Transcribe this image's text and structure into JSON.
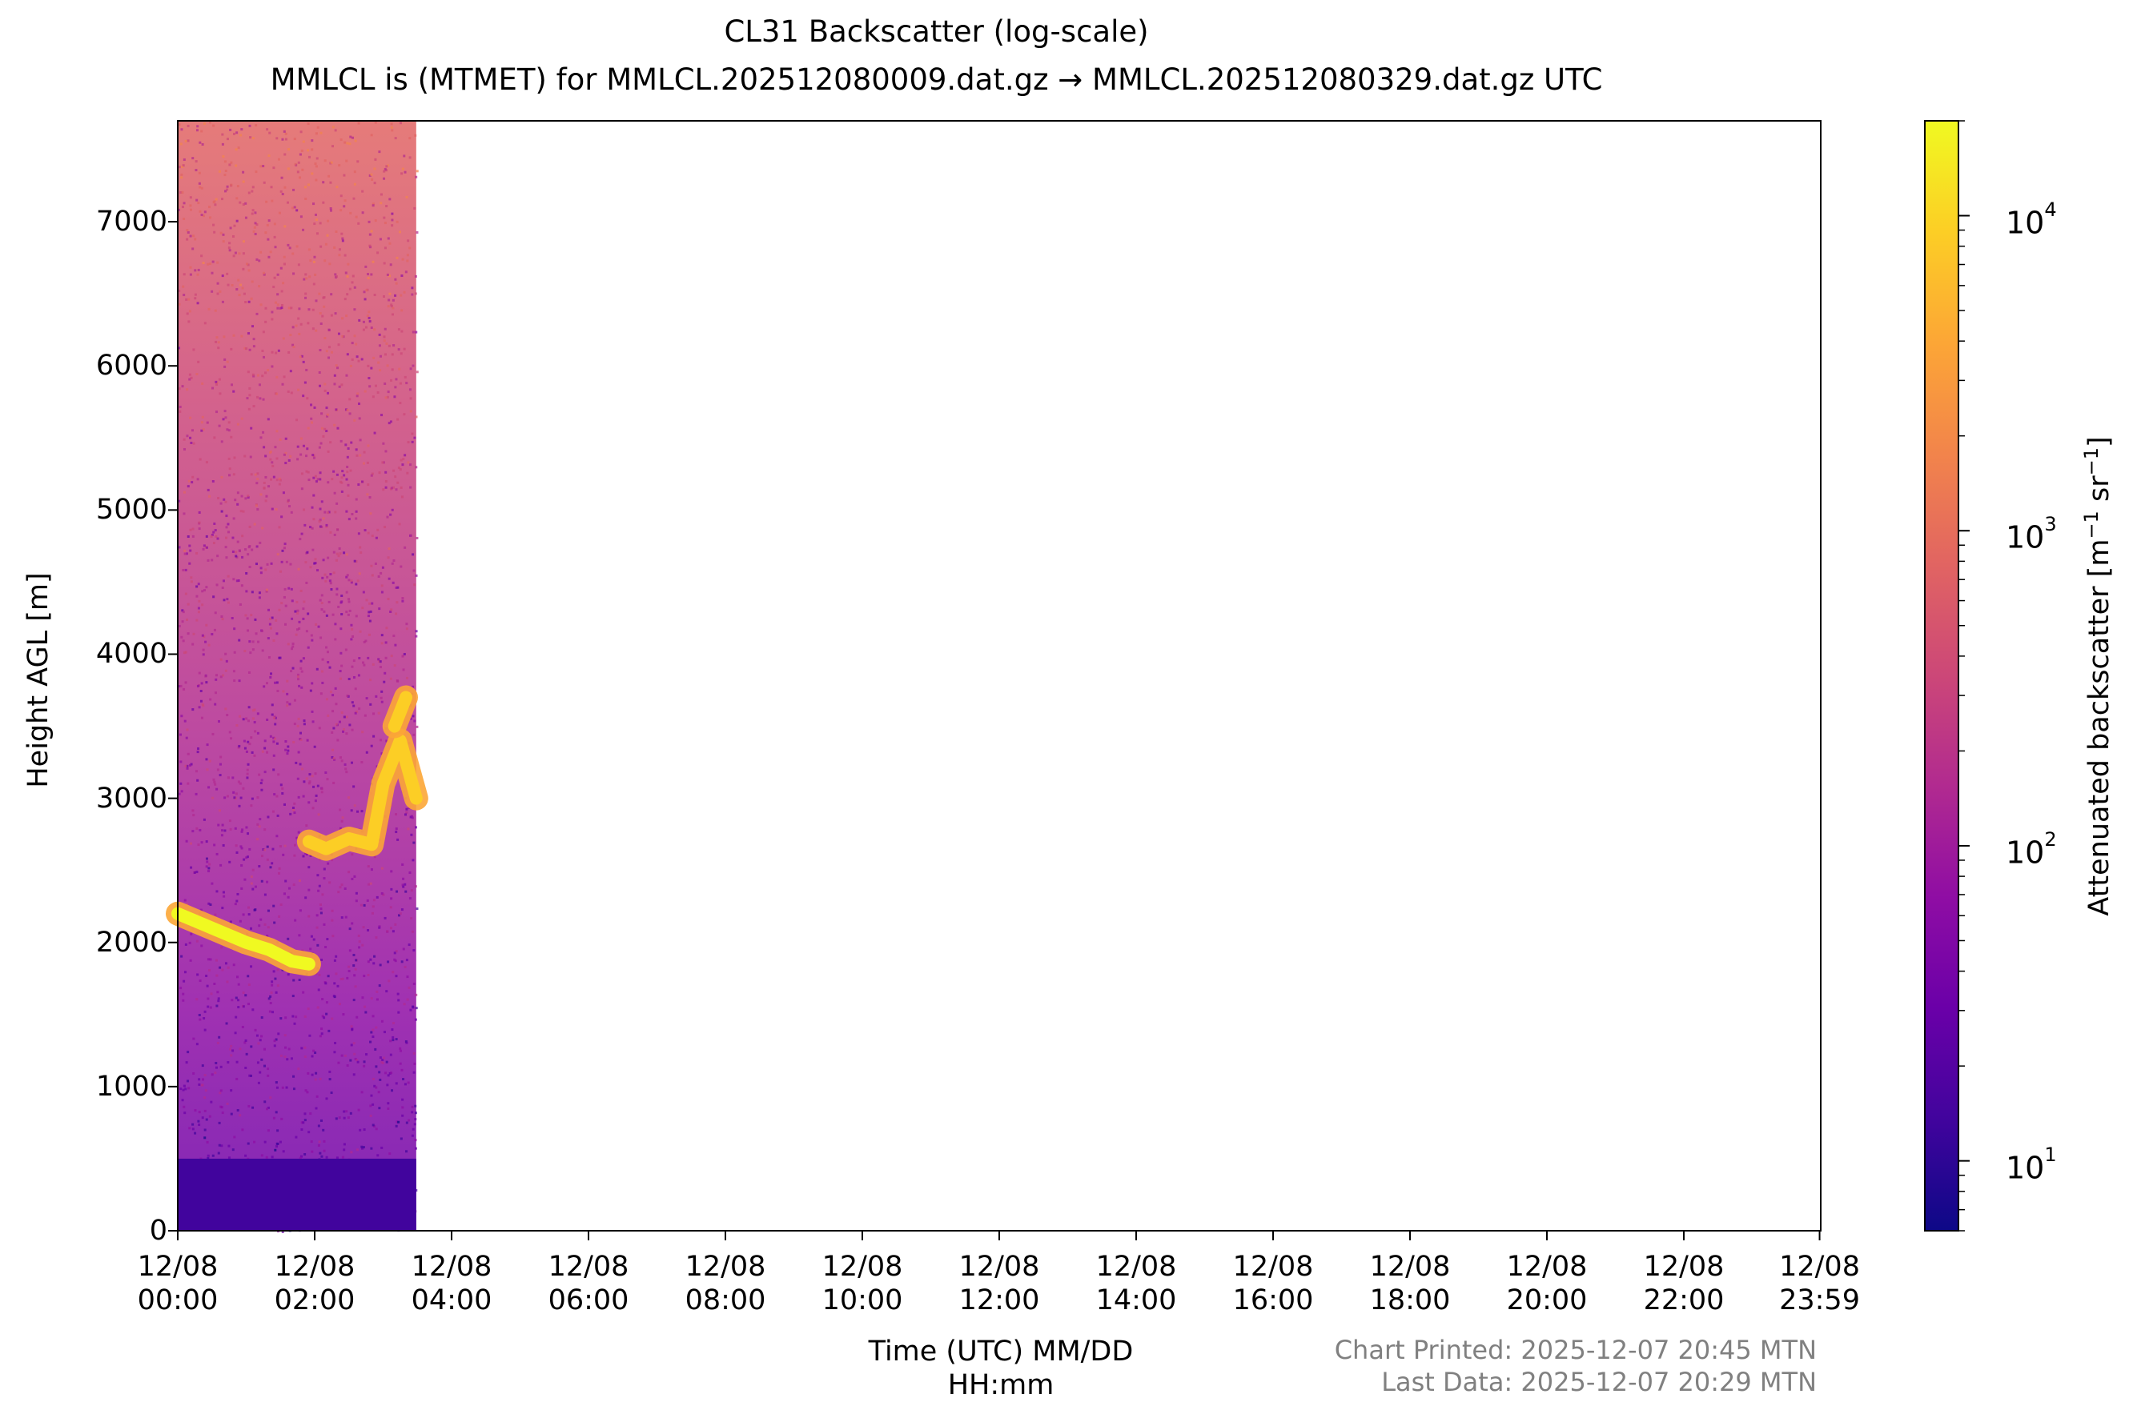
{
  "chart_data": {
    "type": "heatmap",
    "title": "CL31 Backscatter (log-scale)",
    "subtitle": "MMLCL is (MTMET) for MMLCL.202512080009.dat.gz → MMLCL.202512080329.dat.gz UTC",
    "xlabel": "Time (UTC) MM/DD\nHH:mm",
    "xlabel_lines": [
      "Time (UTC) MM/DD",
      "HH:mm"
    ],
    "ylabel": "Height AGL [m]",
    "x_range": [
      "12/08 00:00",
      "12/08 23:59"
    ],
    "x_ticks": [
      [
        "12/08",
        "00:00"
      ],
      [
        "12/08",
        "02:00"
      ],
      [
        "12/08",
        "04:00"
      ],
      [
        "12/08",
        "06:00"
      ],
      [
        "12/08",
        "08:00"
      ],
      [
        "12/08",
        "10:00"
      ],
      [
        "12/08",
        "12:00"
      ],
      [
        "12/08",
        "14:00"
      ],
      [
        "12/08",
        "16:00"
      ],
      [
        "12/08",
        "18:00"
      ],
      [
        "12/08",
        "20:00"
      ],
      [
        "12/08",
        "22:00"
      ],
      [
        "12/08",
        "23:59"
      ]
    ],
    "x_ticks_hours": [
      0,
      2,
      4,
      6,
      8,
      10,
      12,
      14,
      16,
      18,
      20,
      22,
      23.983
    ],
    "y_ticks": [
      0,
      1000,
      2000,
      3000,
      4000,
      5000,
      6000,
      7000
    ],
    "y_range": [
      0,
      7700
    ],
    "data_coverage": {
      "start": "12/08 00:00",
      "end": "12/08 03:29"
    },
    "features": [
      {
        "name": "surface layer",
        "time_start": "12/08 00:00",
        "time_end": "12/08 03:29",
        "height_bottom": 0,
        "height_top": 500,
        "approx_value": 15
      },
      {
        "name": "cloud layer",
        "times": [
          "00:00",
          "00:30",
          "01:00",
          "01:20",
          "01:40",
          "01:55"
        ],
        "heights": [
          2200,
          2100,
          2000,
          1950,
          1870,
          1850
        ],
        "approx_value": 15000
      },
      {
        "name": "cloud layer",
        "times": [
          "01:55",
          "02:10",
          "02:30",
          "02:50",
          "03:00",
          "03:15",
          "03:29"
        ],
        "heights": [
          2700,
          2650,
          2720,
          2680,
          3100,
          3400,
          3000
        ],
        "approx_value": 12000
      },
      {
        "name": "cloud tops",
        "times": [
          "03:10",
          "03:20"
        ],
        "heights": [
          3500,
          3700
        ],
        "approx_value": 8000
      }
    ],
    "colorbar": {
      "label": "Attenuated backscatter [m⁻¹ sr⁻¹]",
      "label_parts": [
        "Attenuated backscatter [m",
        "−1",
        " sr",
        "−1",
        "]"
      ],
      "scale": "log",
      "range": [
        6,
        20000
      ],
      "colormap": "plasma",
      "ticks": [
        10,
        100,
        1000,
        10000
      ],
      "tick_labels": [
        {
          "base": "10",
          "exp": "1"
        },
        {
          "base": "10",
          "exp": "2"
        },
        {
          "base": "10",
          "exp": "3"
        },
        {
          "base": "10",
          "exp": "4"
        }
      ]
    },
    "grid": false,
    "footer": {
      "printed": "Chart Printed: 2025-12-07 20:45 MTN",
      "last_data": "Last Data: 2025-12-07 20:29 MTN"
    }
  },
  "colors": {
    "plasma": [
      "#0d0887",
      "#41049d",
      "#6a00a8",
      "#8f0da4",
      "#b12a90",
      "#cc4778",
      "#e16462",
      "#f2844b",
      "#fca636",
      "#fcce25",
      "#f0f921"
    ],
    "footer": "#808080"
  }
}
